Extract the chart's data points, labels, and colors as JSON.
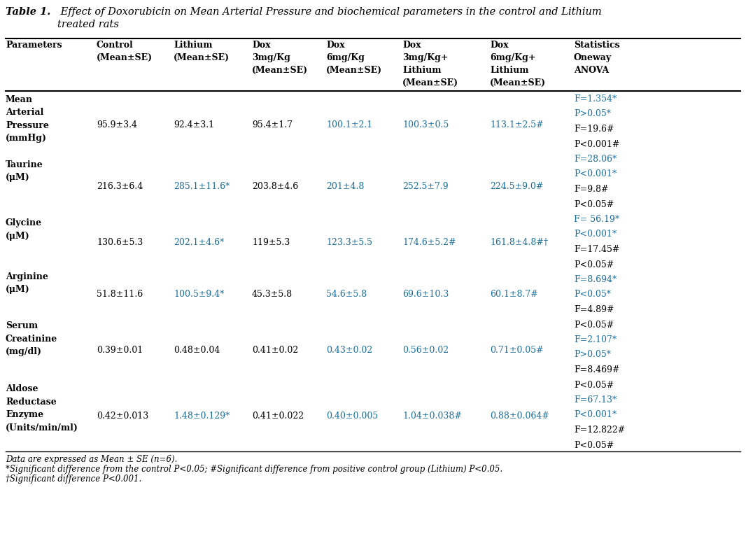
{
  "title_bold_part": "Table 1.",
  "title_rest": " Effect of Doxorubicin on Mean Arterial Pressure and biochemical parameters in the control and Lithium\n       treated rats",
  "col_headers": [
    "Parameters",
    "Control\n(Mean±SE)",
    "Lithium\n(Mean±SE)",
    "Dox\n3mg/Kg\n(Mean±SE)",
    "Dox\n6mg/Kg\n(Mean±SE)",
    "Dox\n3mg/Kg+\nLithium\n(Mean±SE)",
    "Dox\n6mg/Kg+\nLithium\n(Mean±SE)",
    "Statistics\nOneway\nANOVA"
  ],
  "rows": [
    {
      "param": "Mean\nArterial\nPressure\n(mmHg)",
      "values": [
        "95.9±3.4",
        "92.4±3.1",
        "95.4±1.7",
        "100.1±2.1",
        "100.3±0.5",
        "113.1±2.5#"
      ],
      "value_colors": [
        "#000000",
        "#000000",
        "#000000",
        "#1a6fa0",
        "#1a6fa0",
        "#1a6fa0"
      ]
    },
    {
      "param": "Taurine\n(μM)",
      "values": [
        "216.3±6.4",
        "285.1±11.6*",
        "203.8±4.6",
        "201±4.8",
        "252.5±7.9",
        "224.5±9.0#"
      ],
      "value_colors": [
        "#000000",
        "#1a6fa0",
        "#000000",
        "#1a6fa0",
        "#1a6fa0",
        "#1a6fa0"
      ]
    },
    {
      "param": "Glycine\n(μM)",
      "values": [
        "130.6±5.3",
        "202.1±4.6*",
        "119±5.3",
        "123.3±5.5",
        "174.6±5.2#",
        "161.8±4.8#†"
      ],
      "value_colors": [
        "#000000",
        "#1a6fa0",
        "#000000",
        "#1a6fa0",
        "#1a6fa0",
        "#1a6fa0"
      ]
    },
    {
      "param": "Arginine\n(μM)",
      "values": [
        "51.8±11.6",
        "100.5±9.4*",
        "45.3±5.8",
        "54.6±5.8",
        "69.6±10.3",
        "60.1±8.7#"
      ],
      "value_colors": [
        "#000000",
        "#1a6fa0",
        "#000000",
        "#1a6fa0",
        "#1a6fa0",
        "#1a6fa0"
      ]
    },
    {
      "param": "Serum\nCreatinine\n(mg/dl)",
      "values": [
        "0.39±0.01",
        "0.48±0.04",
        "0.41±0.02",
        "0.43±0.02",
        "0.56±0.02",
        "0.71±0.05#"
      ],
      "value_colors": [
        "#000000",
        "#000000",
        "#000000",
        "#1a6fa0",
        "#1a6fa0",
        "#1a6fa0"
      ]
    },
    {
      "param": "Aldose\nReductase\nEnzyme\n(Units/min/ml)",
      "values": [
        "0.42±0.013",
        "1.48±0.129*",
        "0.41±0.022",
        "0.40±0.005",
        "1.04±0.038#",
        "0.88±0.064#"
      ],
      "value_colors": [
        "#000000",
        "#1a6fa0",
        "#000000",
        "#1a6fa0",
        "#1a6fa0",
        "#1a6fa0"
      ]
    }
  ],
  "all_stats": [
    {
      "text": "F=1.354*",
      "color": "#1a6fa0"
    },
    {
      "text": "P>0.05*",
      "color": "#1a6fa0"
    },
    {
      "text": "F=19.6#",
      "color": "#000000"
    },
    {
      "text": "P<0.001#",
      "color": "#000000"
    },
    {
      "text": "F=28.06*",
      "color": "#1a6fa0"
    },
    {
      "text": "P<0.001*",
      "color": "#1a6fa0"
    },
    {
      "text": "F=9.8#",
      "color": "#000000"
    },
    {
      "text": "P<0.05#",
      "color": "#000000"
    },
    {
      "text": "F= 56.19*",
      "color": "#1a6fa0"
    },
    {
      "text": "P<0.001*",
      "color": "#1a6fa0"
    },
    {
      "text": "F=17.45#",
      "color": "#000000"
    },
    {
      "text": "P<0.05#",
      "color": "#000000"
    },
    {
      "text": "F=8.694*",
      "color": "#1a6fa0"
    },
    {
      "text": "P<0.05*",
      "color": "#1a6fa0"
    },
    {
      "text": "F=4.89#",
      "color": "#000000"
    },
    {
      "text": "P<0.05#",
      "color": "#000000"
    },
    {
      "text": "F=2.107*",
      "color": "#1a6fa0"
    },
    {
      "text": "P>0.05*",
      "color": "#1a6fa0"
    },
    {
      "text": "F=8.469#",
      "color": "#000000"
    },
    {
      "text": "P<0.05#",
      "color": "#000000"
    },
    {
      "text": "F=67.13*",
      "color": "#1a6fa0"
    },
    {
      "text": "P<0.001*",
      "color": "#1a6fa0"
    },
    {
      "text": "F=12.822#",
      "color": "#000000"
    },
    {
      "text": "P<0.05#",
      "color": "#000000"
    }
  ],
  "footnotes": [
    "Data are expressed as Mean ± SE (n=6).",
    "*Significant difference from the control P<0.05; #Significant difference from positive control group (Lithium) P<0.05.",
    "†Significant difference P<0.001."
  ],
  "bg_color": "#ffffff",
  "black": "#000000",
  "blue": "#1a6fa0"
}
